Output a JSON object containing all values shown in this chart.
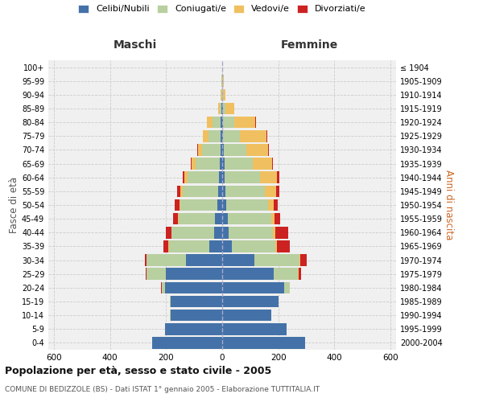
{
  "age_groups": [
    "0-4",
    "5-9",
    "10-14",
    "15-19",
    "20-24",
    "25-29",
    "30-34",
    "35-39",
    "40-44",
    "45-49",
    "50-54",
    "55-59",
    "60-64",
    "65-69",
    "70-74",
    "75-79",
    "80-84",
    "85-89",
    "90-94",
    "95-99",
    "100+"
  ],
  "birth_years": [
    "2000-2004",
    "1995-1999",
    "1990-1994",
    "1985-1989",
    "1980-1984",
    "1975-1979",
    "1970-1974",
    "1965-1969",
    "1960-1964",
    "1955-1959",
    "1950-1954",
    "1945-1949",
    "1940-1944",
    "1935-1939",
    "1930-1934",
    "1925-1929",
    "1920-1924",
    "1915-1919",
    "1910-1914",
    "1905-1909",
    "≤ 1904"
  ],
  "male": {
    "celibi": [
      250,
      205,
      185,
      185,
      205,
      200,
      130,
      45,
      30,
      25,
      18,
      15,
      12,
      10,
      7,
      5,
      5,
      2,
      1,
      1,
      0
    ],
    "coniugati": [
      0,
      0,
      1,
      1,
      10,
      70,
      140,
      145,
      150,
      130,
      130,
      125,
      110,
      85,
      65,
      45,
      30,
      8,
      2,
      1,
      0
    ],
    "vedovi": [
      0,
      0,
      0,
      0,
      1,
      1,
      1,
      1,
      2,
      2,
      5,
      8,
      12,
      15,
      15,
      20,
      20,
      5,
      2,
      1,
      0
    ],
    "divorziati": [
      0,
      0,
      0,
      0,
      1,
      2,
      5,
      18,
      20,
      18,
      15,
      12,
      8,
      2,
      2,
      0,
      0,
      0,
      0,
      0,
      0
    ]
  },
  "female": {
    "nubili": [
      295,
      230,
      175,
      200,
      220,
      185,
      115,
      35,
      22,
      20,
      15,
      12,
      10,
      8,
      5,
      4,
      3,
      2,
      1,
      1,
      0
    ],
    "coniugate": [
      0,
      1,
      1,
      1,
      20,
      85,
      160,
      155,
      160,
      155,
      150,
      140,
      125,
      100,
      80,
      60,
      40,
      10,
      3,
      1,
      0
    ],
    "vedove": [
      0,
      0,
      0,
      0,
      1,
      2,
      2,
      5,
      8,
      12,
      20,
      40,
      60,
      70,
      80,
      95,
      75,
      30,
      8,
      3,
      0
    ],
    "divorziate": [
      0,
      0,
      0,
      0,
      1,
      8,
      25,
      45,
      45,
      20,
      12,
      12,
      8,
      2,
      2,
      2,
      2,
      0,
      0,
      0,
      0
    ]
  },
  "colors": {
    "celibi": "#4472a8",
    "coniugati": "#b8cfa0",
    "vedovi": "#f0c060",
    "divorziati": "#cc2222"
  },
  "title": "Popolazione per età, sesso e stato civile - 2005",
  "subtitle": "COMUNE DI BEDIZZOLE (BS) - Dati ISTAT 1° gennaio 2005 - Elaborazione TUTTITALIA.IT",
  "xlabel_left": "Maschi",
  "xlabel_right": "Femmine",
  "ylabel_left": "Fasce di età",
  "ylabel_right": "Anni di nascita",
  "xlim": 620,
  "legend_labels": [
    "Celibi/Nubili",
    "Coniugati/e",
    "Vedovi/e",
    "Divorziati/e"
  ],
  "background_color": "#f0f0f0",
  "grid_color": "#cccccc"
}
